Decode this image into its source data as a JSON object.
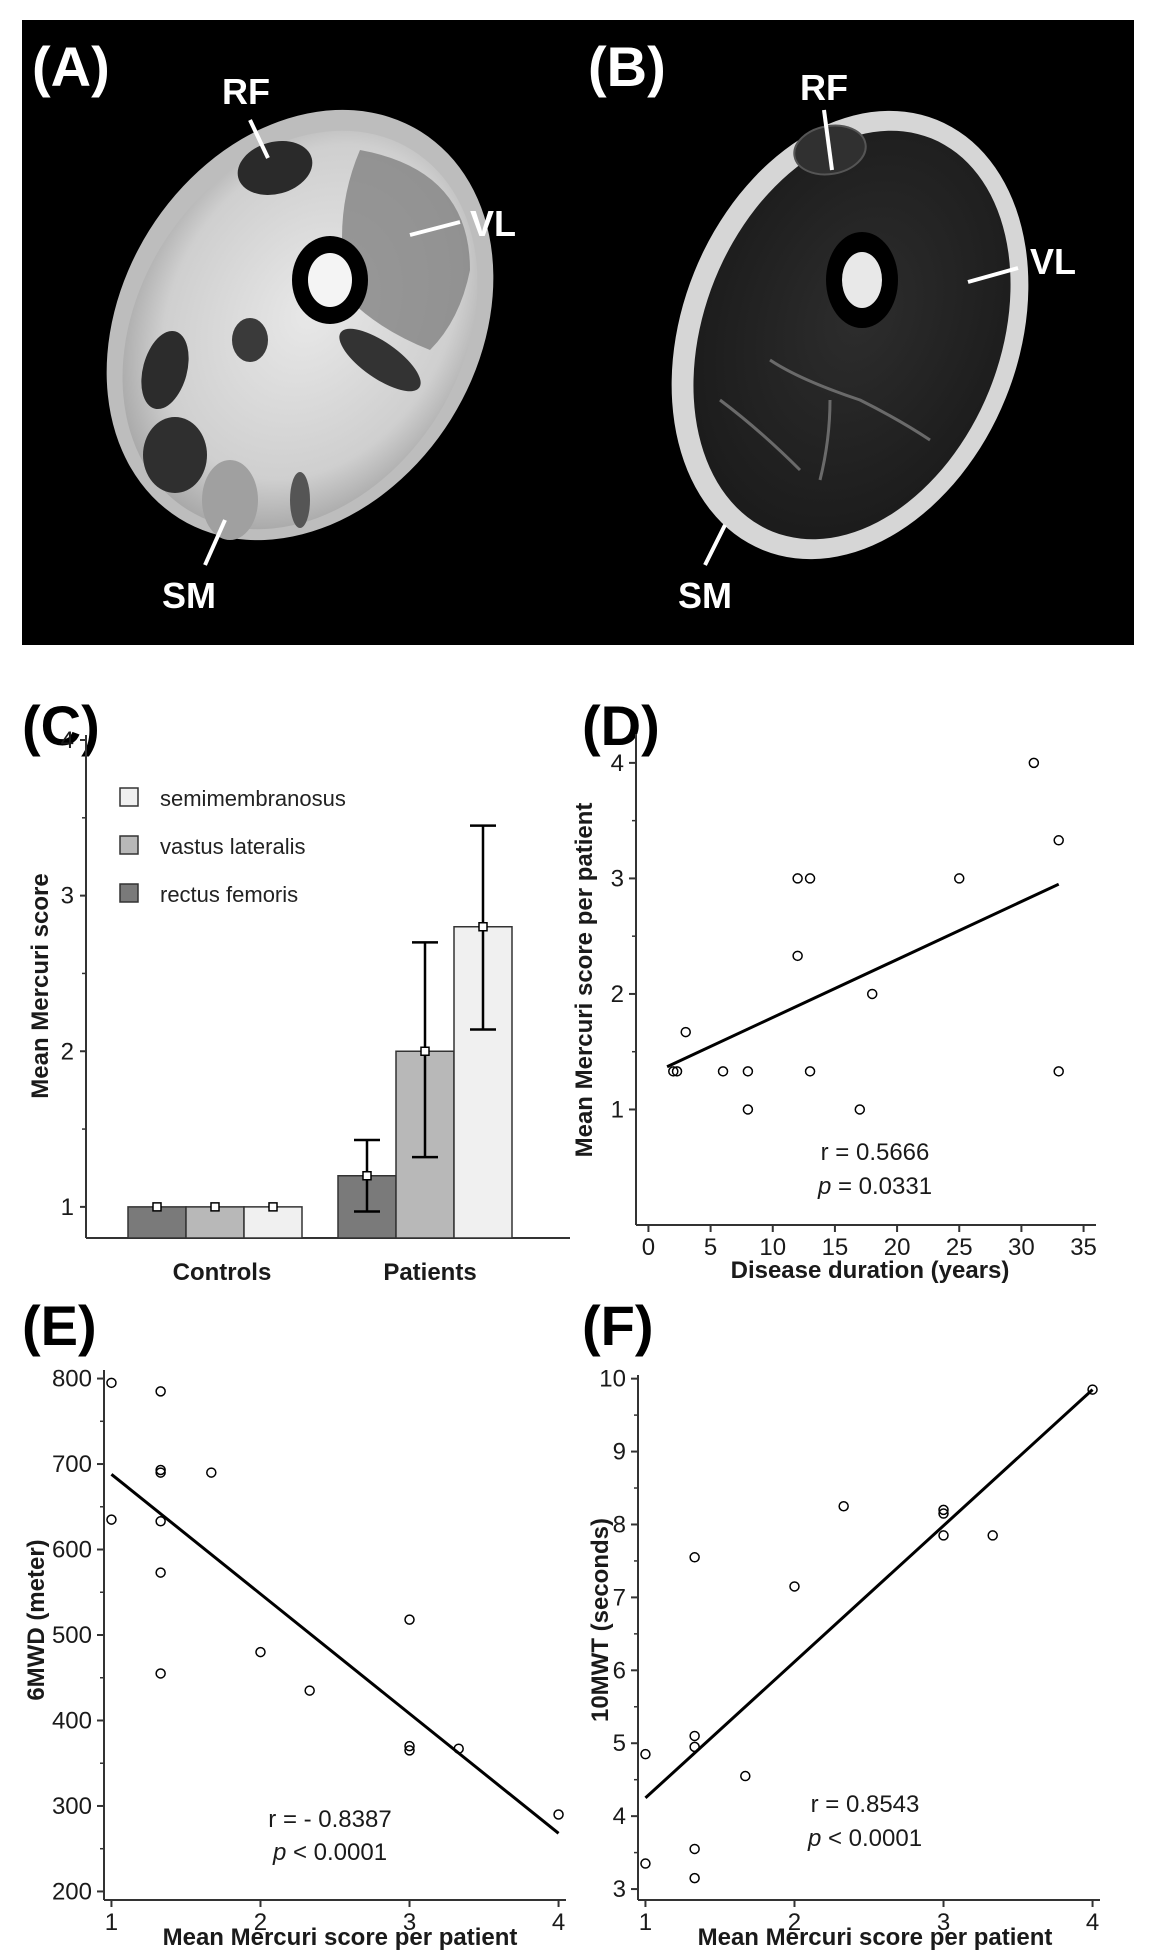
{
  "mri": {
    "panels": [
      {
        "letter": "(A)",
        "labels": {
          "rf": "RF",
          "vl": "VL",
          "sm": "SM"
        }
      },
      {
        "letter": "(B)",
        "labels": {
          "rf": "RF",
          "vl": "VL",
          "sm": "SM"
        }
      }
    ]
  },
  "chart_data": [
    {
      "panel": "(C)",
      "type": "bar",
      "title": "",
      "ylabel": "Mean Mercuri score",
      "xlabel": "",
      "categories": [
        "Controls",
        "Patients"
      ],
      "ylim": [
        0.8,
        4
      ],
      "yticks": [
        "1",
        "2",
        "3",
        "4"
      ],
      "legend": [
        "semimembranosus",
        "vastus lateralis",
        "rectus femoris"
      ],
      "series": [
        {
          "name": "rectus femoris",
          "color": "#7a7a7a",
          "values": [
            1.0,
            1.2
          ],
          "err_low": [
            1.0,
            0.97
          ],
          "err_high": [
            1.0,
            1.43
          ]
        },
        {
          "name": "vastus lateralis",
          "color": "#b8b8b8",
          "values": [
            1.0,
            2.0
          ],
          "err_low": [
            1.0,
            1.32
          ],
          "err_high": [
            1.0,
            2.7
          ]
        },
        {
          "name": "semimembranosus",
          "color": "#f0f0f0",
          "values": [
            1.0,
            2.8
          ],
          "err_low": [
            1.0,
            2.14
          ],
          "err_high": [
            1.0,
            3.45
          ]
        }
      ]
    },
    {
      "panel": "(D)",
      "type": "scatter",
      "xlabel": "Disease duration (years)",
      "ylabel": "Mean Mercuri score per patient",
      "xlim": [
        -1,
        36
      ],
      "ylim": [
        0.0,
        4.25
      ],
      "xticks": [
        "0",
        "5",
        "10",
        "15",
        "20",
        "25",
        "30",
        "35"
      ],
      "yticks": [
        "1",
        "2",
        "3",
        "4"
      ],
      "x": [
        2,
        2.3,
        3,
        6,
        8,
        8,
        12,
        12,
        13,
        13,
        17,
        18,
        25,
        31,
        33,
        33
      ],
      "y": [
        1.33,
        1.33,
        1.67,
        1.33,
        1.33,
        1.0,
        3.0,
        2.33,
        3.0,
        1.33,
        1.0,
        2.0,
        3.0,
        4.0,
        3.33,
        1.33
      ],
      "fit": {
        "x": [
          1.5,
          33
        ],
        "y": [
          1.37,
          2.95
        ]
      },
      "r_text": "r = 0.5666",
      "p_letter": "p",
      "p_text": " = 0.0331"
    },
    {
      "panel": "(E)",
      "type": "scatter",
      "xlabel": "Mean Mercuri score per patient",
      "ylabel": "6MWD (meter)",
      "xlim": [
        0.95,
        4.05
      ],
      "ylim": [
        190,
        810
      ],
      "xticks": [
        "1",
        "2",
        "3",
        "4"
      ],
      "yticks": [
        "200",
        "300",
        "400",
        "500",
        "600",
        "700",
        "800"
      ],
      "x": [
        1,
        1,
        1.33,
        1.33,
        1.33,
        1.33,
        1.33,
        1.33,
        1.67,
        2,
        2.33,
        3,
        3,
        3,
        3.33,
        4
      ],
      "y": [
        795,
        635,
        785,
        693,
        690,
        633,
        573,
        455,
        690,
        480,
        435,
        518,
        370,
        365,
        367,
        290
      ],
      "fit": {
        "x": [
          1,
          4
        ],
        "y": [
          688,
          268
        ]
      },
      "r_text": "r = - 0.8387",
      "p_letter": "p",
      "p_text": " < 0.0001"
    },
    {
      "panel": "(F)",
      "type": "scatter",
      "xlabel": "Mean Mercuri score per patient",
      "ylabel": "10MWT (seconds)",
      "xlim": [
        0.95,
        4.05
      ],
      "ylim": [
        2.85,
        10.05
      ],
      "xticks": [
        "1",
        "2",
        "3",
        "4"
      ],
      "yticks": [
        "3",
        "4",
        "5",
        "6",
        "7",
        "8",
        "9",
        "10"
      ],
      "x": [
        1,
        1,
        1.33,
        1.33,
        1.33,
        1.33,
        1.33,
        1.67,
        2,
        2.33,
        3,
        3,
        3,
        3.33,
        4
      ],
      "y": [
        4.85,
        3.35,
        7.55,
        5.1,
        4.95,
        3.55,
        3.15,
        4.55,
        7.15,
        8.25,
        8.2,
        8.15,
        7.85,
        7.85,
        9.85
      ],
      "fit": {
        "x": [
          1,
          4
        ],
        "y": [
          4.25,
          9.85
        ]
      },
      "r_text": "r = 0.8543",
      "p_letter": "p",
      "p_text": " < 0.0001"
    }
  ]
}
